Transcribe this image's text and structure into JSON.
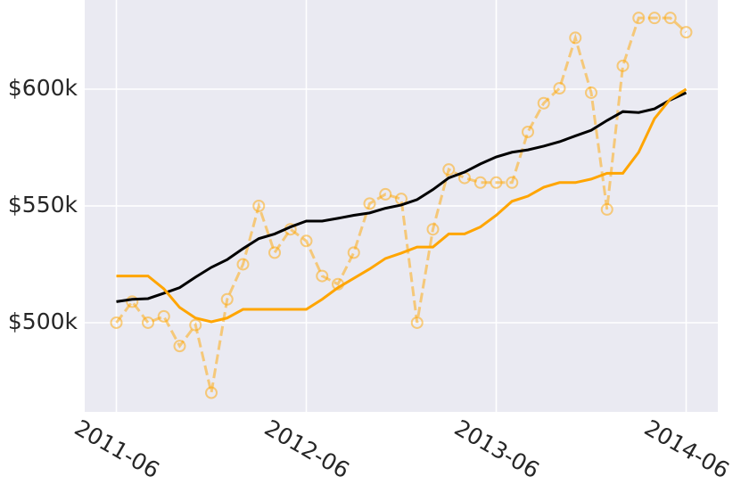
{
  "chart_data": {
    "type": "line",
    "x": [
      "2011-06",
      "2011-07",
      "2011-08",
      "2011-09",
      "2011-10",
      "2011-11",
      "2011-12",
      "2012-01",
      "2012-02",
      "2012-03",
      "2012-04",
      "2012-05",
      "2012-06",
      "2012-07",
      "2012-08",
      "2012-09",
      "2012-10",
      "2012-11",
      "2012-12",
      "2013-01",
      "2013-02",
      "2013-03",
      "2013-04",
      "2013-05",
      "2013-06",
      "2013-07",
      "2013-08",
      "2013-09",
      "2013-10",
      "2013-11",
      "2013-12",
      "2014-01",
      "2014-02",
      "2014-03",
      "2014-04",
      "2014-05",
      "2014-06"
    ],
    "series": [
      {
        "color": "#ffa500",
        "alpha": 0.5,
        "linestyle": "dashed",
        "marker": "circle",
        "values": [
          500000,
          509000,
          500000,
          502700,
          490000,
          499000,
          470000,
          510000,
          525000,
          550000,
          530000,
          540000,
          535000,
          520000,
          516500,
          530000,
          551000,
          555000,
          553000,
          500000,
          540000,
          565600,
          562000,
          560000,
          560000,
          560000,
          581700,
          594000,
          600400,
          622000,
          598500,
          548500,
          610000,
          630500,
          630500,
          630500,
          624400
        ]
      },
      {
        "color": "#000000",
        "alpha": 1,
        "linestyle": "solid",
        "marker": "none",
        "values": [
          509000,
          510000,
          510300,
          512600,
          515000,
          519500,
          523700,
          527000,
          531700,
          536000,
          538000,
          541000,
          543500,
          543500,
          544700,
          546000,
          547000,
          549000,
          550400,
          552700,
          557000,
          562000,
          564500,
          568000,
          571000,
          573000,
          574000,
          575600,
          577500,
          580000,
          582400,
          586600,
          590400,
          590000,
          591600,
          595400,
          598500
        ]
      },
      {
        "color": "#ffa500",
        "alpha": 1,
        "linestyle": "solid",
        "marker": "none",
        "values": [
          520000,
          520000,
          520000,
          514500,
          506500,
          502000,
          500400,
          502000,
          505700,
          505700,
          505700,
          505700,
          505700,
          510000,
          515000,
          519000,
          523000,
          527500,
          529800,
          532400,
          532400,
          538000,
          538000,
          541000,
          546000,
          552000,
          554200,
          558000,
          560000,
          560000,
          561500,
          564000,
          564000,
          573000,
          587400,
          595800,
          600000
        ]
      }
    ],
    "xlim": [
      "2011-04",
      "2014-08"
    ],
    "xticks": [
      "2011-06",
      "2012-06",
      "2013-06",
      "2014-06"
    ],
    "ylim": [
      461800,
      638200
    ],
    "yticks": [
      {
        "value": 500000,
        "label": "$500k"
      },
      {
        "value": 550000,
        "label": "$550k"
      },
      {
        "value": 600000,
        "label": "$600k"
      }
    ],
    "grid": true
  }
}
